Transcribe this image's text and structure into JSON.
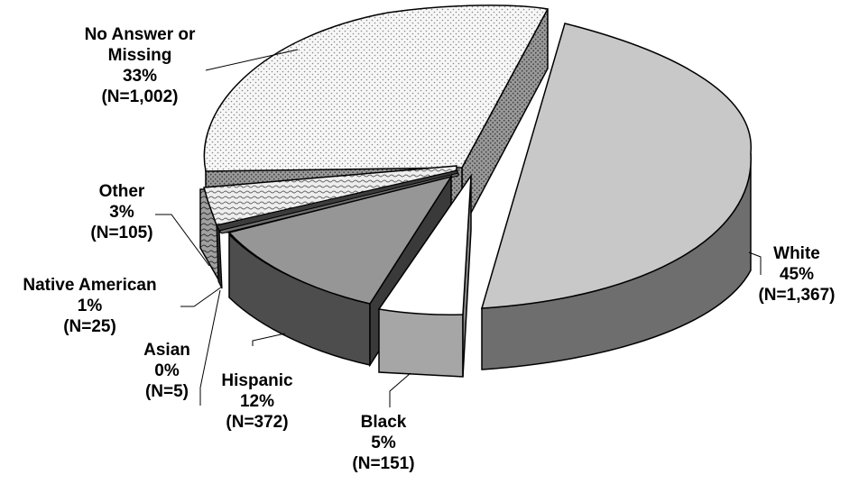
{
  "chart_data": {
    "type": "pie",
    "title": "",
    "slices": [
      {
        "name": "White",
        "percent": "45%",
        "n": "(N=1,367)",
        "value": 1367
      },
      {
        "name": "Black",
        "percent": "5%",
        "n": "(N=151)",
        "value": 151
      },
      {
        "name": "Hispanic",
        "percent": "12%",
        "n": "(N=372)",
        "value": 372
      },
      {
        "name": "Asian",
        "percent": "0%",
        "n": "(N=5)",
        "value": 5
      },
      {
        "name": "Native American",
        "percent": "1%",
        "n": "(N=25)",
        "value": 25
      },
      {
        "name": "Other",
        "percent": "3%",
        "n": "(N=105)",
        "value": 105
      },
      {
        "name": "No Answer or Missing",
        "percent": "33%",
        "n": "(N=1,002)",
        "value": 1002
      }
    ],
    "label_lines": {
      "no_answer": [
        "No Answer or",
        "Missing"
      ]
    },
    "style": "3d-exploded",
    "colors": {
      "white_top": "#c8c8c8",
      "white_side": "#6e6e6e",
      "black_top": "#ffffff",
      "black_side": "#a6a6a6",
      "hispanic_top": "#969696",
      "hispanic_side": "#4d4d4d",
      "asian_top": "#6e6e6e",
      "native_top": "#3c3c3c",
      "other_top": "#f0f0f0",
      "no_answer_top": "#f5f5f5",
      "no_answer_side": "#8c8c8c"
    }
  }
}
